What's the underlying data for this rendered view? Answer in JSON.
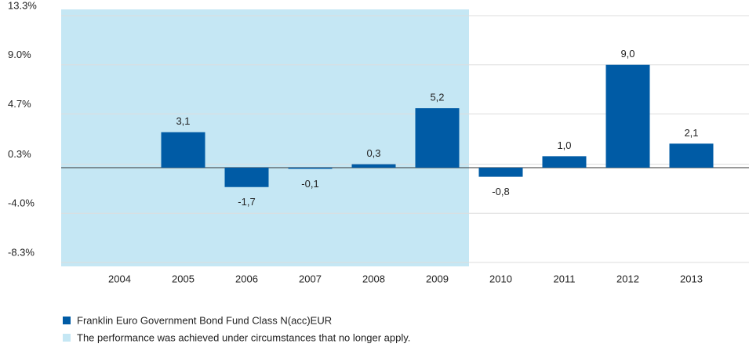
{
  "chart_data": {
    "type": "bar",
    "categories": [
      "2004",
      "2005",
      "2006",
      "2007",
      "2008",
      "2009",
      "2010",
      "2011",
      "2012",
      "2013"
    ],
    "series": [
      {
        "name": "Franklin Euro Government Bond Fund Class N(acc)EUR",
        "color": "#005ba5",
        "values": [
          null,
          3.1,
          -1.7,
          -0.1,
          0.3,
          5.2,
          -0.8,
          1.0,
          9.0,
          2.1
        ],
        "value_labels": [
          null,
          "3,1",
          "-1,7",
          "-0,1",
          "0,3",
          "5,2",
          "-0,8",
          "1,0",
          "9,0",
          "2,1"
        ]
      }
    ],
    "shade": {
      "name": "The performance was achieved under circumstances that no longer apply.",
      "color": "#c5e7f4",
      "until": "2009"
    },
    "ylim": [
      -8.3,
      13.3
    ],
    "yticks": [
      {
        "value": 13.3,
        "label": "13.3%"
      },
      {
        "value": 9.0,
        "label": "9.0%"
      },
      {
        "value": 4.7,
        "label": "4.7%"
      },
      {
        "value": 0.3,
        "label": "0.3%"
      },
      {
        "value": -4.0,
        "label": "-4.0%"
      },
      {
        "value": -8.3,
        "label": "-8.3%"
      }
    ],
    "grid": true
  }
}
